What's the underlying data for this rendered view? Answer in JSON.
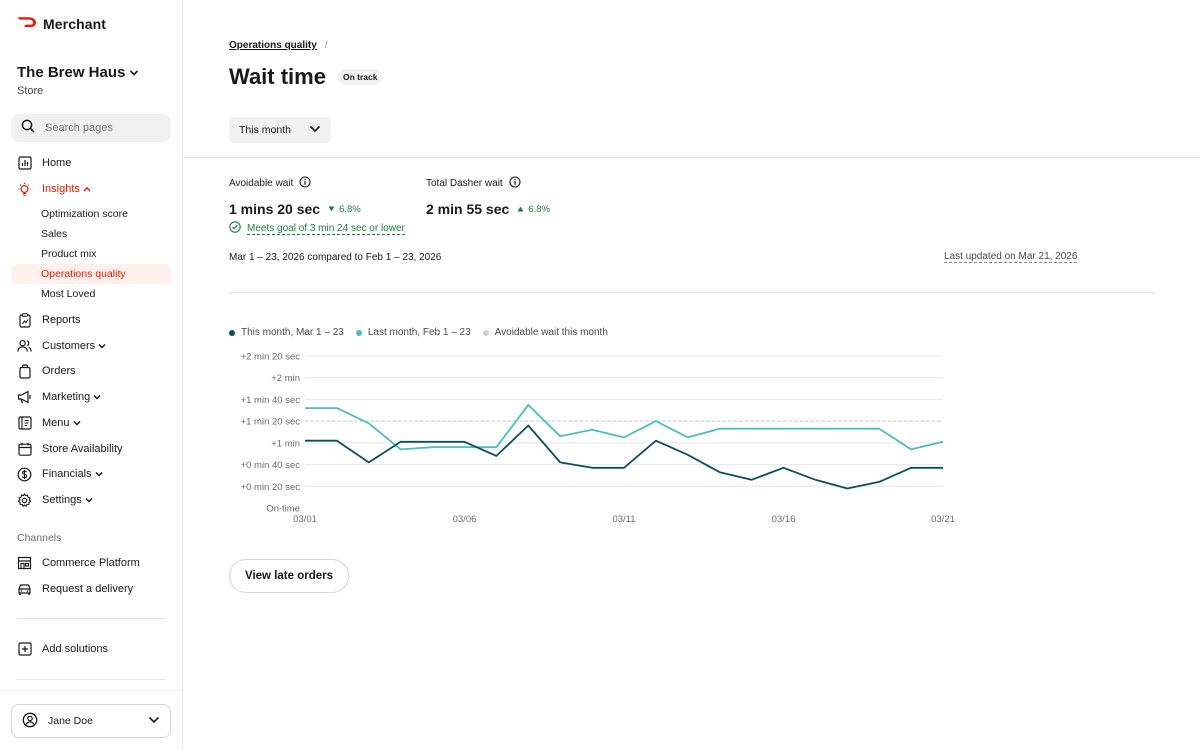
{
  "brand": {
    "name": "Merchant",
    "accent": "#eb1700"
  },
  "store": {
    "name": "The Brew Haus",
    "type": "Store"
  },
  "search": {
    "placeholder": "Search pages"
  },
  "nav": {
    "home": "Home",
    "insights": "Insights",
    "insights_sub": [
      "Optimization score",
      "Sales",
      "Product mix",
      "Operations quality",
      "Most Loved"
    ],
    "reports": "Reports",
    "customers": "Customers",
    "orders": "Orders",
    "marketing": "Marketing",
    "menu": "Menu",
    "store_availability": "Store Availability",
    "financials": "Financials",
    "settings": "Settings"
  },
  "channels": {
    "label": "Channels",
    "commerce_platform": "Commerce Platform",
    "request_delivery": "Request a delivery"
  },
  "add_solutions": "Add solutions",
  "user": {
    "name": "Jane Doe"
  },
  "page": {
    "breadcrumb": "Operations quality",
    "breadcrumb_sep": "/",
    "title": "Wait time",
    "status": "On track",
    "period": "This month"
  },
  "metrics": {
    "avoidable": {
      "label": "Avoidable wait",
      "value": "1 mins 20 sec",
      "delta": "6.8%",
      "direction": "down"
    },
    "total": {
      "label": "Total Dasher wait",
      "value": "2 min 55 sec",
      "delta": "6.8%",
      "direction": "up"
    },
    "goal": "Meets goal of 3 min 24 sec or lower",
    "compare": "Mar 1 – 23, 2026 compared to Feb 1 – 23, 2026",
    "updated": "Last updated on Mar 21, 2026"
  },
  "chart_data": {
    "type": "line",
    "y_tick_labels": [
      "+2 min 20 sec",
      "+2 min",
      "+1 min 40 sec",
      "+1 min 20 sec",
      "+1 min",
      "+0  min 40 sec",
      "+0  min 20 sec",
      "On-time"
    ],
    "ylim": [
      0,
      140
    ],
    "x_tick_labels": [
      "03/01",
      "03/06",
      "03/11",
      "03/16",
      "03/21"
    ],
    "x_tick_index": [
      0,
      5,
      10,
      15,
      20
    ],
    "x_count": 21,
    "reference_line": {
      "name": "Avoidable wait this month",
      "value": 80,
      "color": "#cfcfcf"
    },
    "series": [
      {
        "name": "This month, Mar 1 – 23",
        "color": "#0b4f5c",
        "values": [
          62,
          62,
          42,
          61,
          61,
          61,
          48,
          76,
          42,
          37,
          37,
          62,
          49,
          33,
          26,
          37,
          26,
          18,
          24,
          37,
          37
        ]
      },
      {
        "name": "Last month, Feb 1 – 23",
        "color": "#4cbcc3",
        "values": [
          92,
          92,
          78,
          54,
          56,
          56,
          56,
          95,
          66,
          72,
          65,
          80,
          65,
          73,
          73,
          73,
          73,
          73,
          73,
          54,
          61
        ]
      }
    ]
  },
  "actions": {
    "view_late_orders": "View late orders"
  }
}
